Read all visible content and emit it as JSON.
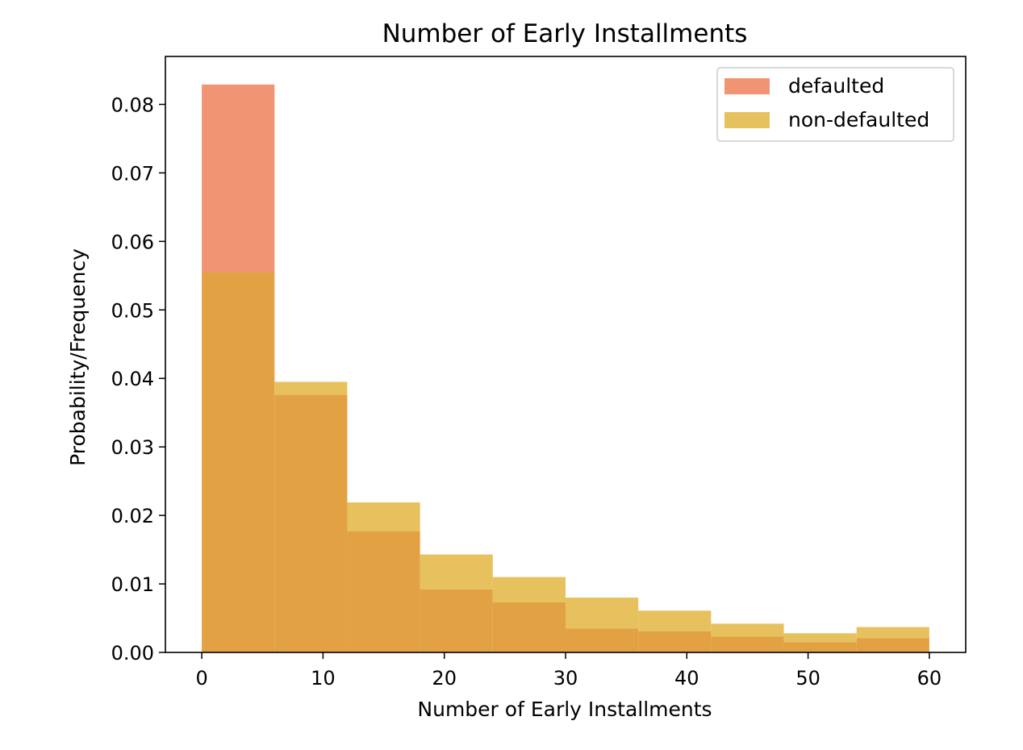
{
  "chart_data": {
    "type": "bar",
    "title": "Number of Early Installments",
    "xlabel": "Number of Early Installments",
    "ylabel": "Probability/Frequency",
    "bin_edges": [
      0,
      6,
      12,
      18,
      24,
      30,
      36,
      42,
      48,
      54,
      60
    ],
    "xlim": [
      -3,
      63
    ],
    "ylim": [
      0,
      0.087
    ],
    "xticks": [
      "0",
      "10",
      "20",
      "30",
      "40",
      "50",
      "60"
    ],
    "yticks": [
      "0.00",
      "0.01",
      "0.02",
      "0.03",
      "0.04",
      "0.05",
      "0.06",
      "0.07",
      "0.08"
    ],
    "grid": false,
    "legend_position": "top-right",
    "series": [
      {
        "name": "defaulted",
        "color": "#f19473",
        "values": [
          0.0829,
          0.0376,
          0.0177,
          0.0092,
          0.0073,
          0.0035,
          0.0031,
          0.0023,
          0.0015,
          0.0021
        ]
      },
      {
        "name": "non-defaulted",
        "color": "#e8c15f",
        "values": [
          0.0555,
          0.0395,
          0.0219,
          0.0143,
          0.011,
          0.008,
          0.0061,
          0.0042,
          0.0028,
          0.0037
        ]
      }
    ],
    "overlap_color": "#e2a142"
  }
}
